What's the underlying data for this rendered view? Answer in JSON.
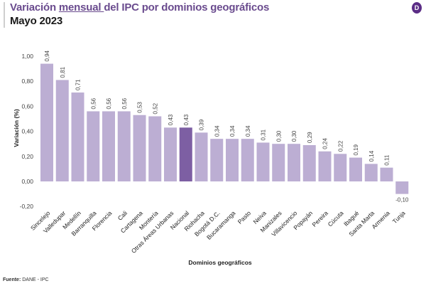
{
  "header": {
    "title_pre": "Variación ",
    "title_underlined": "mensual ",
    "title_post": "del IPC por dominios geográficos",
    "subtitle": "Mayo 2023",
    "logo_icon": "dane-logo-icon",
    "logo_letter": "D"
  },
  "footer": {
    "source_label": "Fuente:",
    "source_text": " DANE - IPC"
  },
  "colors": {
    "bar": "#bcaed3",
    "highlight": "#7d5fa3",
    "title": "#6a4b8e"
  },
  "chart_data": {
    "type": "bar",
    "title": "Variación mensual del IPC por dominios geográficos",
    "subtitle": "Mayo 2023",
    "xlabel": "Dominios geográficos",
    "ylabel": "Variación (%)",
    "ylim": [
      -0.2,
      1.0
    ],
    "yticks": [
      1.0,
      0.8,
      0.6,
      0.4,
      0.2,
      0.0,
      -0.2
    ],
    "ytick_labels": [
      "1,00",
      "0,80",
      "0,60",
      "0,40",
      "0,20",
      "0,00",
      "-0,20"
    ],
    "grid": false,
    "legend": "none",
    "highlight_category": "Nacional",
    "categories": [
      "Sincelejo",
      "Valledupar",
      "Medellín",
      "Barranquilla",
      "Florencia",
      "Cali",
      "Cartagena",
      "Montería",
      "Otras Áreas Urbanas",
      "Nacional",
      "Riohacha",
      "Bogotá D.C.",
      "Bucaramanga",
      "Pasto",
      "Neiva",
      "Manizales",
      "Villavicencio",
      "Popayán",
      "Pereira",
      "Cúcuta",
      "Ibagué",
      "Santa Marta",
      "Armenia",
      "Tunja"
    ],
    "values": [
      0.94,
      0.81,
      0.71,
      0.56,
      0.56,
      0.56,
      0.53,
      0.52,
      0.43,
      0.43,
      0.39,
      0.34,
      0.34,
      0.34,
      0.31,
      0.3,
      0.3,
      0.29,
      0.24,
      0.22,
      0.19,
      0.14,
      0.11,
      -0.1
    ],
    "value_labels": [
      "0,94",
      "0,81",
      "0,71",
      "0,56",
      "0,56",
      "0,56",
      "0,53",
      "0,52",
      "0,43",
      "0,43",
      "0,39",
      "0,34",
      "0,34",
      "0,34",
      "0,31",
      "0,30",
      "0,30",
      "0,29",
      "0,24",
      "0,22",
      "0,19",
      "0,14",
      "0,11",
      "-0,10"
    ],
    "source": "Fuente: DANE - IPC"
  }
}
